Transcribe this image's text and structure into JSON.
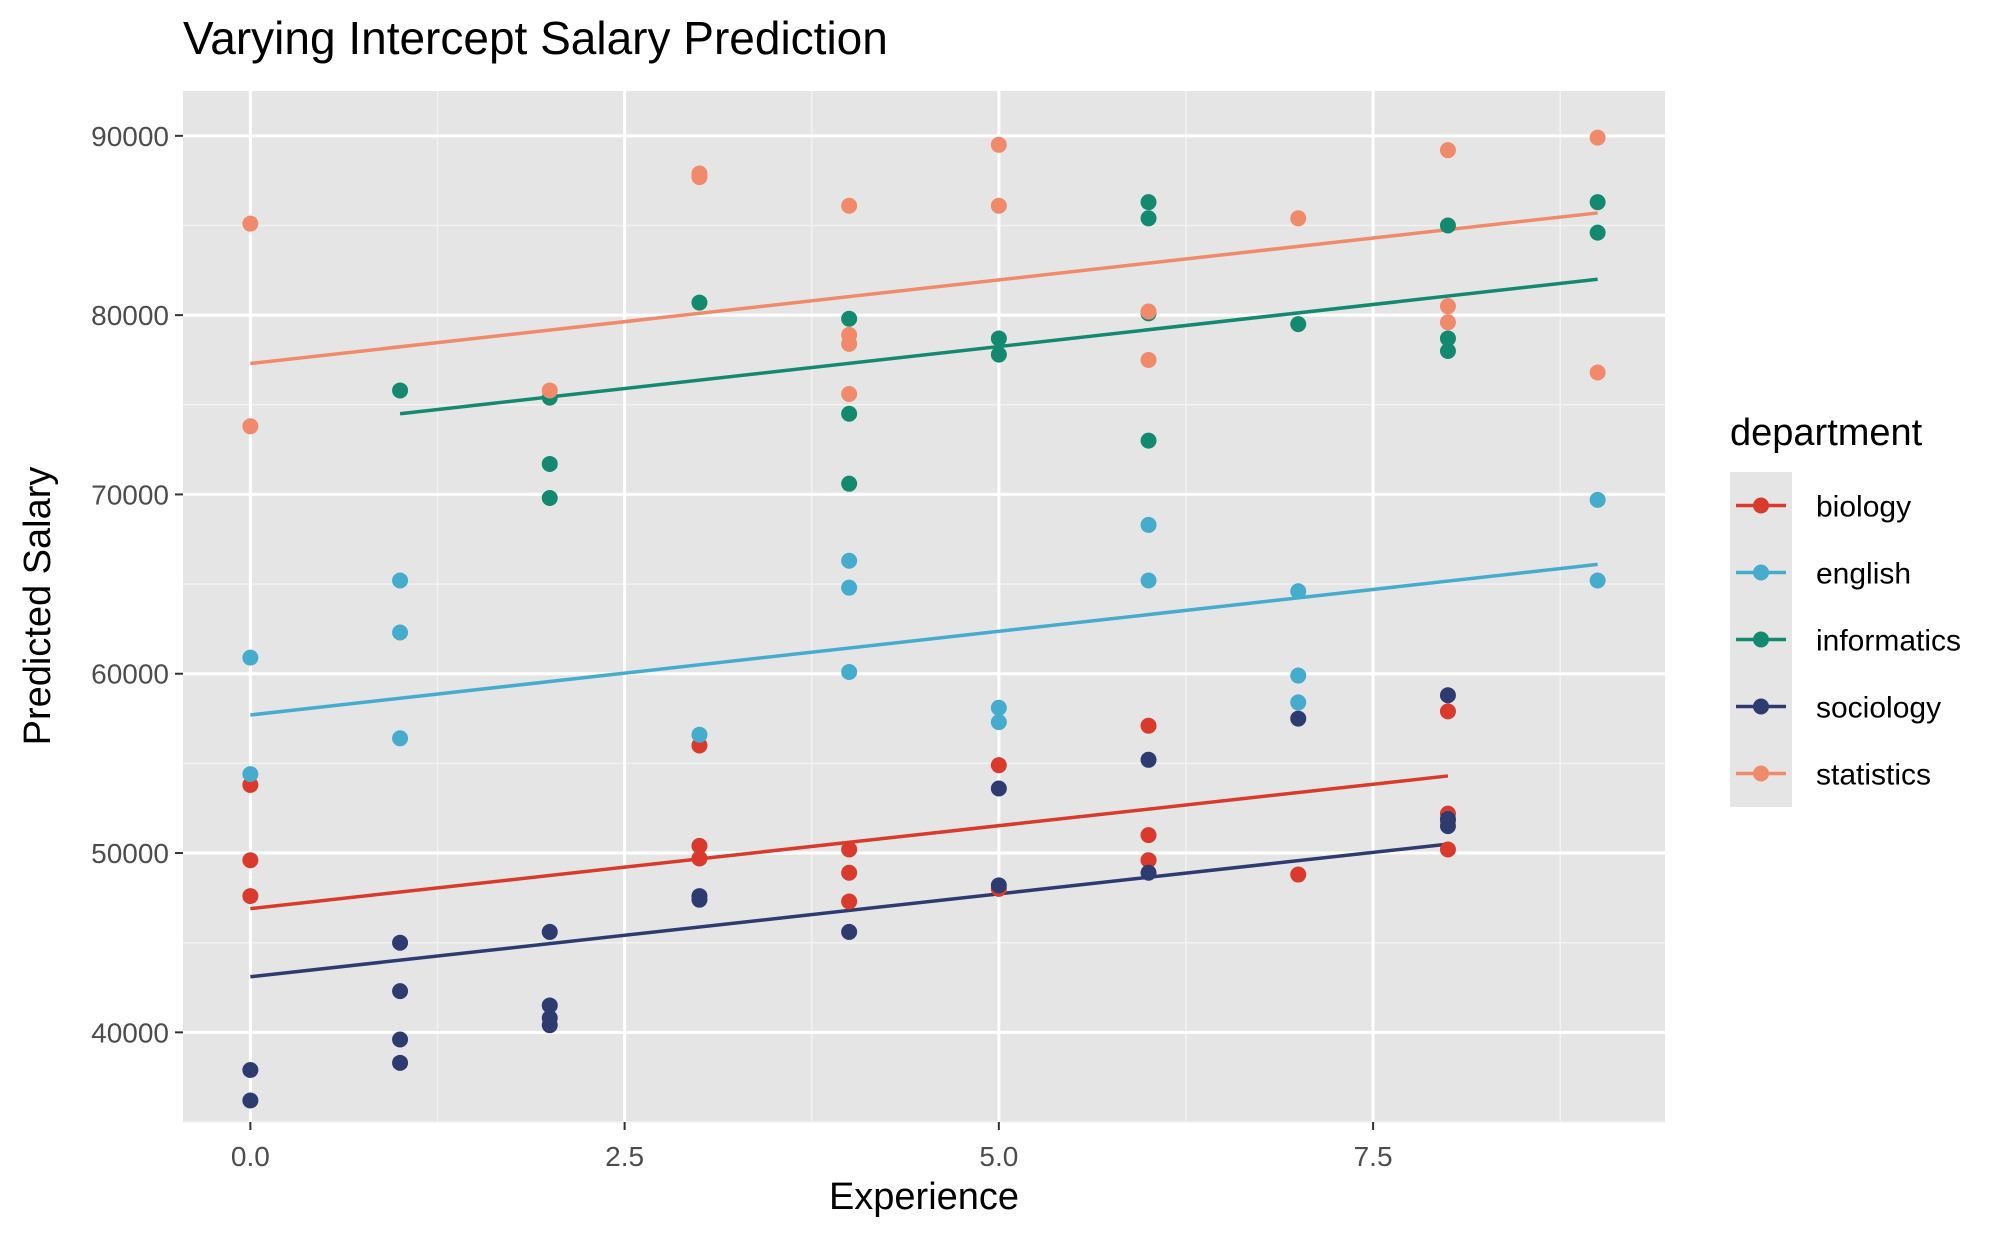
{
  "chart_data": {
    "type": "scatter",
    "title": "Varying Intercept Salary Prediction",
    "xlabel": "Experience",
    "ylabel": "Predicted Salary",
    "xlim": [
      -0.45,
      9.45
    ],
    "ylim": [
      35000,
      92500
    ],
    "x_ticks": [
      0.0,
      2.5,
      5.0,
      7.5
    ],
    "x_tick_labels": [
      "0.0",
      "2.5",
      "5.0",
      "7.5"
    ],
    "y_ticks": [
      40000,
      50000,
      60000,
      70000,
      80000,
      90000
    ],
    "y_tick_labels": [
      "40000",
      "50000",
      "60000",
      "70000",
      "80000",
      "90000"
    ],
    "grid": true,
    "legend_title": "department",
    "legend_position": "right",
    "series": [
      {
        "name": "biology",
        "color": "#D93A2B",
        "points": [
          [
            0,
            53800
          ],
          [
            0,
            49600
          ],
          [
            0,
            47600
          ],
          [
            3,
            56000
          ],
          [
            3,
            50400
          ],
          [
            3,
            49700
          ],
          [
            4,
            50200
          ],
          [
            4,
            48900
          ],
          [
            4,
            47300
          ],
          [
            5,
            54900
          ],
          [
            5,
            48000
          ],
          [
            6,
            57100
          ],
          [
            6,
            51000
          ],
          [
            6,
            49600
          ],
          [
            7,
            48800
          ],
          [
            8,
            57900
          ],
          [
            8,
            52200
          ],
          [
            8,
            51800
          ],
          [
            8,
            50200
          ]
        ],
        "line": [
          [
            0,
            46900
          ],
          [
            8,
            54300
          ]
        ]
      },
      {
        "name": "english",
        "color": "#46ACCE",
        "points": [
          [
            0,
            60900
          ],
          [
            0,
            54400
          ],
          [
            1,
            65200
          ],
          [
            1,
            62300
          ],
          [
            1,
            56400
          ],
          [
            3,
            56600
          ],
          [
            4,
            66300
          ],
          [
            4,
            64800
          ],
          [
            4,
            60100
          ],
          [
            5,
            58100
          ],
          [
            5,
            57300
          ],
          [
            6,
            68300
          ],
          [
            6,
            65200
          ],
          [
            7,
            64600
          ],
          [
            7,
            59900
          ],
          [
            7,
            58400
          ],
          [
            9,
            69700
          ],
          [
            9,
            65200
          ]
        ],
        "line": [
          [
            0,
            57700
          ],
          [
            9,
            66100
          ]
        ]
      },
      {
        "name": "informatics",
        "color": "#138A70",
        "points": [
          [
            1,
            75800
          ],
          [
            2,
            75400
          ],
          [
            2,
            71700
          ],
          [
            2,
            69800
          ],
          [
            3,
            80700
          ],
          [
            4,
            79800
          ],
          [
            4,
            74500
          ],
          [
            4,
            70600
          ],
          [
            5,
            78700
          ],
          [
            5,
            77800
          ],
          [
            6,
            86300
          ],
          [
            6,
            85400
          ],
          [
            6,
            80100
          ],
          [
            6,
            73000
          ],
          [
            7,
            79500
          ],
          [
            8,
            85000
          ],
          [
            8,
            78700
          ],
          [
            8,
            78000
          ],
          [
            9,
            86300
          ],
          [
            9,
            84600
          ]
        ],
        "line": [
          [
            1,
            74500
          ],
          [
            9,
            82000
          ]
        ]
      },
      {
        "name": "sociology",
        "color": "#2E3B71",
        "points": [
          [
            0,
            37900
          ],
          [
            0,
            36200
          ],
          [
            1,
            45000
          ],
          [
            1,
            42300
          ],
          [
            1,
            39600
          ],
          [
            1,
            38300
          ],
          [
            2,
            45600
          ],
          [
            2,
            41500
          ],
          [
            2,
            40800
          ],
          [
            2,
            40400
          ],
          [
            3,
            47600
          ],
          [
            3,
            47400
          ],
          [
            4,
            45600
          ],
          [
            5,
            53600
          ],
          [
            5,
            48200
          ],
          [
            6,
            55200
          ],
          [
            6,
            48900
          ],
          [
            7,
            57500
          ],
          [
            8,
            58800
          ],
          [
            8,
            51900
          ],
          [
            8,
            51500
          ]
        ],
        "line": [
          [
            0,
            43100
          ],
          [
            8,
            50500
          ]
        ]
      },
      {
        "name": "statistics",
        "color": "#F08A6A",
        "points": [
          [
            0,
            85100
          ],
          [
            0,
            73800
          ],
          [
            2,
            75800
          ],
          [
            3,
            87900
          ],
          [
            3,
            87700
          ],
          [
            4,
            86100
          ],
          [
            4,
            78900
          ],
          [
            4,
            78400
          ],
          [
            4,
            75600
          ],
          [
            5,
            89500
          ],
          [
            5,
            86100
          ],
          [
            6,
            80200
          ],
          [
            6,
            77500
          ],
          [
            7,
            85400
          ],
          [
            8,
            89200
          ],
          [
            8,
            80500
          ],
          [
            8,
            79600
          ],
          [
            9,
            89900
          ],
          [
            9,
            76800
          ]
        ],
        "line": [
          [
            0,
            77300
          ],
          [
            9,
            85700
          ]
        ]
      }
    ]
  }
}
